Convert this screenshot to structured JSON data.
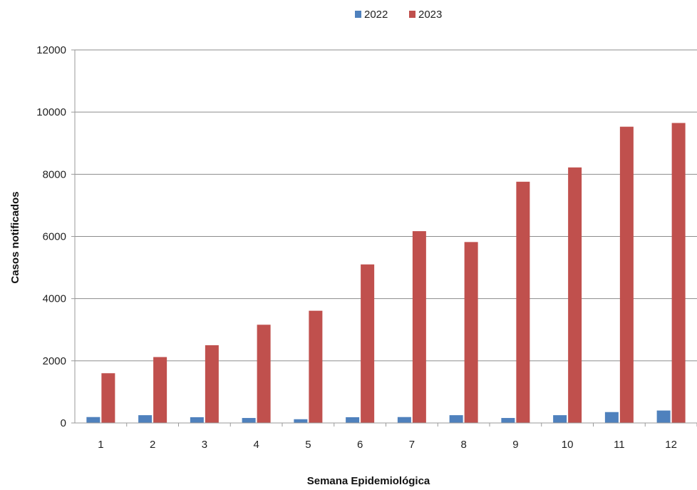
{
  "chart_data": {
    "type": "bar",
    "title": "",
    "xlabel": "Semana Epidemiológica",
    "ylabel": "Casos notificados",
    "categories": [
      "1",
      "2",
      "3",
      "4",
      "5",
      "6",
      "7",
      "8",
      "9",
      "10",
      "11",
      "12"
    ],
    "series": [
      {
        "name": "2022",
        "color": "#4f81bd",
        "values": [
          190,
          250,
          185,
          160,
          120,
          185,
          190,
          250,
          160,
          250,
          350,
          400
        ]
      },
      {
        "name": "2023",
        "color": "#c0504d",
        "values": [
          1600,
          2120,
          2500,
          3160,
          3610,
          5100,
          6170,
          5820,
          7760,
          8220,
          9530,
          9650
        ]
      }
    ],
    "ylim": [
      0,
      12000
    ],
    "yticks": [
      0,
      2000,
      4000,
      6000,
      8000,
      10000,
      12000
    ],
    "grid": true,
    "legend_position": "top-center"
  }
}
